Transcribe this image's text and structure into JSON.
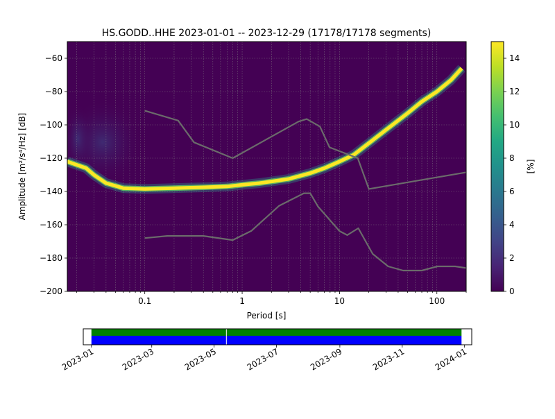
{
  "chart_data": [
    {
      "type": "heatmap",
      "title": "HS.GODD..HHE   2023-01-01 -- 2023-12-29  (17178/17178 segments)",
      "xlabel": "Period [s]",
      "ylabel": "Amplitude [m²/s⁴/Hz] [dB]",
      "x_scale": "log",
      "xlim": [
        0.016,
        200
      ],
      "ylim": [
        -200,
        -50
      ],
      "x_ticks": [
        {
          "v": 0.1,
          "label": "0.1"
        },
        {
          "v": 1,
          "label": "1"
        },
        {
          "v": 10,
          "label": "10"
        },
        {
          "v": 100,
          "label": "100"
        }
      ],
      "y_ticks": [
        -200,
        -180,
        -160,
        -140,
        -120,
        -100,
        -80,
        -60
      ],
      "grid": true,
      "colorbar": {
        "label": "[%]",
        "range": [
          0,
          15
        ],
        "ticks": [
          0,
          2,
          4,
          6,
          8,
          10,
          12,
          14
        ]
      },
      "mode_curve": [
        [
          0.016,
          -122
        ],
        [
          0.02,
          -124
        ],
        [
          0.025,
          -126
        ],
        [
          0.03,
          -130
        ],
        [
          0.04,
          -135
        ],
        [
          0.06,
          -138
        ],
        [
          0.1,
          -138.5
        ],
        [
          0.2,
          -138
        ],
        [
          0.4,
          -137.5
        ],
        [
          0.7,
          -137
        ],
        [
          1,
          -136
        ],
        [
          1.5,
          -135
        ],
        [
          2,
          -134
        ],
        [
          3,
          -132.5
        ],
        [
          5,
          -129
        ],
        [
          7,
          -126
        ],
        [
          10,
          -122
        ],
        [
          14,
          -118
        ],
        [
          20,
          -111
        ],
        [
          30,
          -103
        ],
        [
          50,
          -93
        ],
        [
          70,
          -86
        ],
        [
          100,
          -80
        ],
        [
          140,
          -73
        ],
        [
          180,
          -66
        ]
      ],
      "noise_models": [
        {
          "values": [
            [
              0.1,
              -91.5
            ],
            [
              0.22,
              -97.4
            ],
            [
              0.32,
              -110.5
            ],
            [
              0.8,
              -120
            ],
            [
              3.8,
              -98
            ],
            [
              4.6,
              -96.5
            ],
            [
              6.3,
              -101
            ],
            [
              7.9,
              -113.5
            ],
            [
              15.4,
              -120
            ],
            [
              20,
              -138.5
            ],
            [
              200,
              -128.5
            ]
          ]
        },
        {
          "values": [
            [
              0.1,
              -168
            ],
            [
              0.17,
              -166.7
            ],
            [
              0.4,
              -166.7
            ],
            [
              0.8,
              -169.2
            ],
            [
              1.24,
              -163.7
            ],
            [
              2.4,
              -148.6
            ],
            [
              4.3,
              -141.1
            ],
            [
              5,
              -141.1
            ],
            [
              6,
              -149
            ],
            [
              10,
              -163.8
            ],
            [
              12,
              -166.2
            ],
            [
              15.6,
              -162.1
            ],
            [
              21.9,
              -177.5
            ],
            [
              31.6,
              -185
            ],
            [
              45,
              -187.5
            ],
            [
              70,
              -187.5
            ],
            [
              101,
              -185
            ],
            [
              154,
              -185
            ],
            [
              200,
              -186
            ]
          ]
        }
      ]
    },
    {
      "type": "timeline",
      "x_ticks": [
        "2023-01",
        "2023-03",
        "2023-05",
        "2023-07",
        "2023-09",
        "2023-11",
        "2024-01"
      ],
      "xlim": [
        "2022-12-24",
        "2024-01-08"
      ],
      "data_coverage": {
        "start": "2023-01-01",
        "end": "2023-12-29",
        "gap": "2023-05-13",
        "color": "#0000ff"
      },
      "processed_coverage": {
        "start": "2023-01-01",
        "end": "2023-12-29",
        "color": "#008000"
      }
    }
  ]
}
